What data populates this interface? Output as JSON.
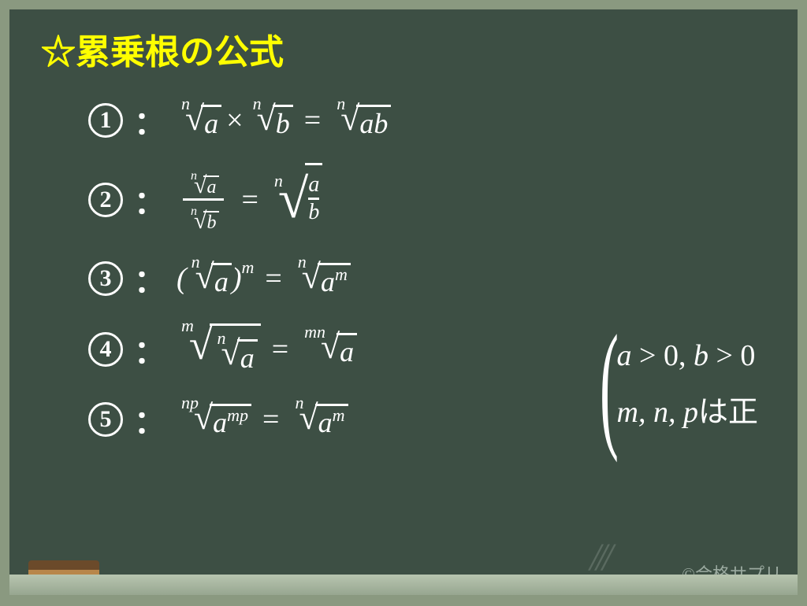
{
  "title": "☆累乗根の公式",
  "formulas": {
    "f1": {
      "num": "1"
    },
    "f2": {
      "num": "2"
    },
    "f3": {
      "num": "3"
    },
    "f4": {
      "num": "4"
    },
    "f5": {
      "num": "5"
    }
  },
  "vars": {
    "a": "a",
    "b": "b",
    "ab": "ab",
    "n": "n",
    "m": "m",
    "p": "p",
    "np": "np",
    "mn": "mn",
    "mp": "mp"
  },
  "ops": {
    "times": "×",
    "eq": "=",
    "colon": "："
  },
  "conditions": {
    "line1_a": "a",
    "line1_gt1": " > 0, ",
    "line1_b": "b",
    "line1_gt2": " > 0",
    "line2_vars": "m, n, p",
    "line2_text": "は正"
  },
  "copyright": "©合格サプリ",
  "chalk": {
    "colors": [
      "#ffffff",
      "#f7b6d0",
      "#f0d860",
      "#88d4d4"
    ],
    "positions": [
      170,
      270,
      370,
      470
    ]
  },
  "board": {
    "bg": "#3d4f44",
    "frame": "#8a9980",
    "title_color": "#ffff00",
    "text_color": "#ffffff"
  }
}
